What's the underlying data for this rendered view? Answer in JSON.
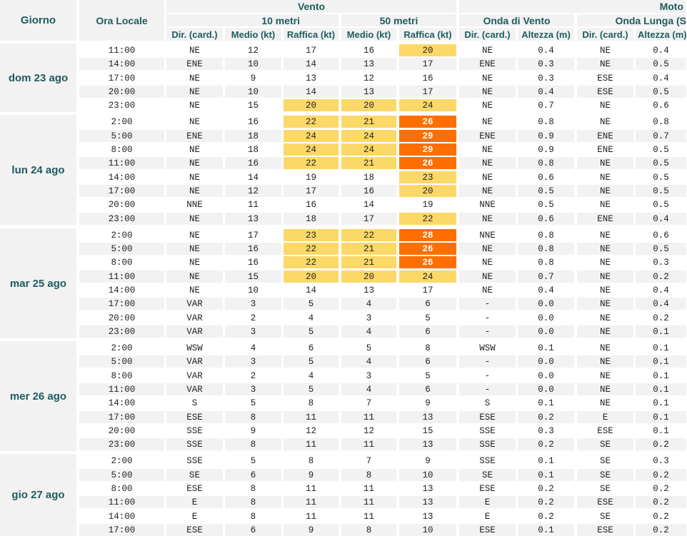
{
  "header": {
    "day_label": "Giorno",
    "time_label": "Ora Locale",
    "vento": "Vento",
    "moto": "Moto",
    "sub_10m": "10 metri",
    "sub_50m": "50 metri",
    "onda_vento": "Onda di Vento",
    "onda_lunga": "Onda Lunga (S",
    "col_dir": "Dir. (card.)",
    "col_medio": "Medio (kt)",
    "col_raffica": "Raffica (kt)",
    "col_altezza": "Altezza (m)",
    "col_altezza_cut": "Altezza (m)"
  },
  "colors": {
    "header_text": "#1e5b5e",
    "header_bg": "#f2f2f2",
    "yellow_highlight": "#fcd868",
    "orange_highlight": "#ff6f00"
  },
  "days": [
    {
      "label": "dom 23 ago",
      "rows": [
        [
          "11:00",
          "NE",
          "12",
          "17",
          "16",
          "20",
          "NE",
          "0.4",
          "NE",
          "0.4"
        ],
        [
          "14:00",
          "ENE",
          "10",
          "14",
          "13",
          "17",
          "ENE",
          "0.3",
          "NE",
          "0.5"
        ],
        [
          "17:00",
          "NE",
          "9",
          "13",
          "12",
          "16",
          "NE",
          "0.3",
          "ESE",
          "0.4"
        ],
        [
          "20:00",
          "NE",
          "10",
          "14",
          "13",
          "17",
          "NE",
          "0.4",
          "ESE",
          "0.5"
        ],
        [
          "23:00",
          "NE",
          "15",
          "20",
          "20",
          "24",
          "NE",
          "0.7",
          "NE",
          "0.6"
        ]
      ]
    },
    {
      "label": "lun 24 ago",
      "rows": [
        [
          "2:00",
          "NE",
          "16",
          "22",
          "21",
          "26",
          "NE",
          "0.8",
          "NE",
          "0.8"
        ],
        [
          "5:00",
          "ENE",
          "18",
          "24",
          "24",
          "29",
          "ENE",
          "0.9",
          "ENE",
          "0.7"
        ],
        [
          "8:00",
          "NE",
          "18",
          "24",
          "24",
          "29",
          "NE",
          "0.9",
          "ENE",
          "0.5"
        ],
        [
          "11:00",
          "NE",
          "16",
          "22",
          "21",
          "26",
          "NE",
          "0.8",
          "NE",
          "0.5"
        ],
        [
          "14:00",
          "NE",
          "14",
          "19",
          "18",
          "23",
          "NE",
          "0.6",
          "NE",
          "0.5"
        ],
        [
          "17:00",
          "NE",
          "12",
          "17",
          "16",
          "20",
          "NE",
          "0.5",
          "NE",
          "0.5"
        ],
        [
          "20:00",
          "NNE",
          "11",
          "16",
          "14",
          "19",
          "NNE",
          "0.5",
          "NE",
          "0.5"
        ],
        [
          "23:00",
          "NE",
          "13",
          "18",
          "17",
          "22",
          "NE",
          "0.6",
          "ENE",
          "0.4"
        ]
      ]
    },
    {
      "label": "mar 25 ago",
      "rows": [
        [
          "2:00",
          "NE",
          "17",
          "23",
          "22",
          "28",
          "NNE",
          "0.8",
          "NE",
          "0.6"
        ],
        [
          "5:00",
          "NE",
          "16",
          "22",
          "21",
          "26",
          "NE",
          "0.8",
          "NE",
          "0.5"
        ],
        [
          "8:00",
          "NE",
          "16",
          "22",
          "21",
          "26",
          "NE",
          "0.8",
          "NE",
          "0.3"
        ],
        [
          "11:00",
          "NE",
          "15",
          "20",
          "20",
          "24",
          "NE",
          "0.7",
          "NE",
          "0.2"
        ],
        [
          "14:00",
          "NE",
          "10",
          "14",
          "13",
          "17",
          "NE",
          "0.4",
          "NE",
          "0.4"
        ],
        [
          "17:00",
          "VAR",
          "3",
          "5",
          "4",
          "6",
          "-",
          "0.0",
          "NE",
          "0.4"
        ],
        [
          "20:00",
          "VAR",
          "2",
          "4",
          "3",
          "5",
          "-",
          "0.0",
          "NE",
          "0.2"
        ],
        [
          "23:00",
          "VAR",
          "3",
          "5",
          "4",
          "6",
          "-",
          "0.0",
          "NE",
          "0.1"
        ]
      ]
    },
    {
      "label": "mer 26 ago",
      "rows": [
        [
          "2:00",
          "WSW",
          "4",
          "6",
          "5",
          "8",
          "WSW",
          "0.1",
          "NE",
          "0.1"
        ],
        [
          "5:00",
          "VAR",
          "3",
          "5",
          "4",
          "6",
          "-",
          "0.0",
          "NE",
          "0.1"
        ],
        [
          "8:00",
          "VAR",
          "2",
          "4",
          "3",
          "5",
          "-",
          "0.0",
          "NE",
          "0.1"
        ],
        [
          "11:00",
          "VAR",
          "3",
          "5",
          "4",
          "6",
          "-",
          "0.0",
          "NE",
          "0.1"
        ],
        [
          "14:00",
          "S",
          "5",
          "8",
          "7",
          "9",
          "S",
          "0.1",
          "NE",
          "0.1"
        ],
        [
          "17:00",
          "ESE",
          "8",
          "11",
          "11",
          "13",
          "ESE",
          "0.2",
          "E",
          "0.1"
        ],
        [
          "20:00",
          "SSE",
          "9",
          "12",
          "12",
          "15",
          "SSE",
          "0.3",
          "ESE",
          "0.1"
        ],
        [
          "23:00",
          "SSE",
          "8",
          "11",
          "11",
          "13",
          "SSE",
          "0.2",
          "SE",
          "0.2"
        ]
      ]
    },
    {
      "label": "gio 27 ago",
      "rows": [
        [
          "2:00",
          "SSE",
          "5",
          "8",
          "7",
          "9",
          "SSE",
          "0.1",
          "SE",
          "0.3"
        ],
        [
          "5:00",
          "SE",
          "6",
          "9",
          "8",
          "10",
          "SE",
          "0.1",
          "SE",
          "0.2"
        ],
        [
          "8:00",
          "ESE",
          "8",
          "11",
          "11",
          "13",
          "ESE",
          "0.2",
          "SE",
          "0.2"
        ],
        [
          "11:00",
          "E",
          "8",
          "11",
          "11",
          "13",
          "E",
          "0.2",
          "ESE",
          "0.2"
        ],
        [
          "14:00",
          "E",
          "8",
          "11",
          "11",
          "13",
          "E",
          "0.2",
          "SE",
          "0.2"
        ],
        [
          "17:00",
          "ESE",
          "6",
          "9",
          "8",
          "10",
          "ESE",
          "0.1",
          "ESE",
          "0.2"
        ]
      ]
    }
  ]
}
